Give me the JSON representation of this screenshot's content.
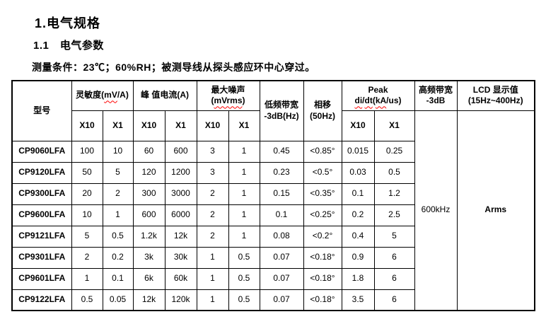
{
  "page": {
    "title": "1.电气规格",
    "subtitle": "1.1　电气参数",
    "condition": "测量条件：23℃；60%RH；被测导线从探头感应环中心穿过。"
  },
  "table": {
    "header": {
      "model": "型号",
      "sensitivity": {
        "pre": "灵敏度(",
        "wavy": "mV",
        "post": "/A)"
      },
      "peak_current": "峰 值电流(A)",
      "max_noise": {
        "line1": "最大噪声",
        "pre": "(",
        "wavy": "mVrms",
        "post": ")"
      },
      "low_bandwidth": {
        "line1": "低频带宽",
        "line2": "-3dB(Hz)"
      },
      "phase_shift": {
        "line1": "相移",
        "line2": "(50Hz)"
      },
      "peak_didt": {
        "line1": "Peak",
        "wavy1": "di",
        "slash": "/",
        "wavy2": "dt",
        "open": "(",
        "wavy3": "kA",
        "close": "/us)"
      },
      "high_bandwidth": {
        "line1": "高频带宽",
        "line2": "-3dB"
      },
      "lcd": {
        "line1": "LCD 显示值",
        "line2": "(15Hz~400Hz)"
      },
      "x10": "X10",
      "x1": "X1"
    },
    "merged": {
      "high_bandwidth_value": "600kHz",
      "lcd_value": "Arms"
    },
    "rows": [
      {
        "model": "CP9060LFA",
        "values": [
          "100",
          "10",
          "60",
          "600",
          "3",
          "1",
          "0.45",
          "<0.85°",
          "0.015",
          "0.25"
        ]
      },
      {
        "model": "CP9120LFA",
        "values": [
          "50",
          "5",
          "120",
          "1200",
          "3",
          "1",
          "0.23",
          "<0.5°",
          "0.03",
          "0.5"
        ]
      },
      {
        "model": "CP9300LFA",
        "values": [
          "20",
          "2",
          "300",
          "3000",
          "2",
          "1",
          "0.15",
          "<0.35°",
          "0.1",
          "1.2"
        ]
      },
      {
        "model": "CP9600LFA",
        "values": [
          "10",
          "1",
          "600",
          "6000",
          "2",
          "1",
          "0.1",
          "<0.25°",
          "0.2",
          "2.5"
        ]
      },
      {
        "model": "CP9121LFA",
        "values": [
          "5",
          "0.5",
          "1.2k",
          "12k",
          "2",
          "1",
          "0.08",
          "<0.2°",
          "0.4",
          "5"
        ]
      },
      {
        "model": "CP9301LFA",
        "values": [
          "2",
          "0.2",
          "3k",
          "30k",
          "1",
          "0.5",
          "0.07",
          "<0.18°",
          "0.9",
          "6"
        ]
      },
      {
        "model": "CP9601LFA",
        "values": [
          "1",
          "0.1",
          "6k",
          "60k",
          "1",
          "0.5",
          "0.07",
          "<0.18°",
          "1.8",
          "6"
        ]
      },
      {
        "model": "CP9122LFA",
        "values": [
          "0.5",
          "0.05",
          "12k",
          "120k",
          "1",
          "0.5",
          "0.07",
          "<0.18°",
          "3.5",
          "6"
        ]
      }
    ]
  }
}
